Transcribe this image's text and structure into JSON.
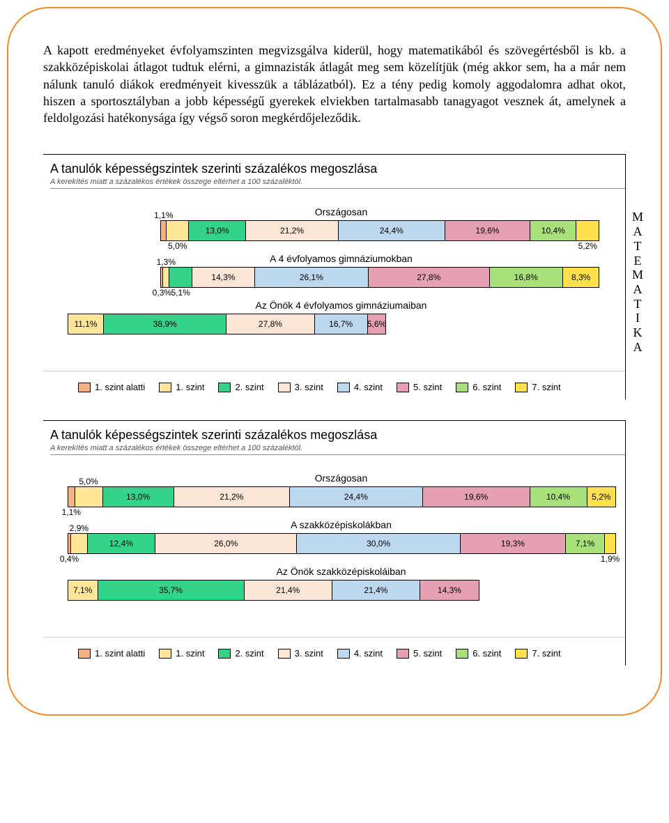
{
  "intro_paragraph": "A kapott eredményeket évfolyamszinten megvizsgálva kiderül, hogy matematikából és szövegértésből is kb. a szakközépiskolai átlagot tudtuk elérni, a gimnazisták átlagát meg sem közelítjük (még akkor sem, ha a már nem nálunk tanuló diákok eredményeit kivesszük a táblázatból). Ez a tény pedig komoly aggodalomra adhat okot, hiszen a sportosztályban a jobb képességű gyerekek elviekben tartalmasabb tanagyagot vesznek át, amelynek a feldolgozási hatékonysága így végső soron megkérdőjeleződik.",
  "side_vertical_text": "MATEMATIKA",
  "colors": {
    "level_below1": "#f4b183",
    "level1": "#ffe699",
    "level2": "#33d48a",
    "level3": "#fbe5d6",
    "level4": "#bdd7ee",
    "level5": "#e6a0b4",
    "level6": "#a9e07a",
    "level7": "#ffe04d"
  },
  "legend": [
    {
      "label": "1. szint alatti"
    },
    {
      "label": "1. szint"
    },
    {
      "label": "2. szint"
    },
    {
      "label": "3. szint"
    },
    {
      "label": "4. szint"
    },
    {
      "label": "5. szint"
    },
    {
      "label": "6. szint"
    },
    {
      "label": "7. szint"
    }
  ],
  "chart1": {
    "title": "A tanulók képességszintek szerinti százalékos megoszlása",
    "subtitle": "A kerekítés miatt a százalékos értékek összege eltérhet a 100 százaléktól.",
    "left_offset_pct": 17,
    "groups": [
      {
        "title": "Országosan",
        "bar_width_pct": 80,
        "segments": [
          {
            "level": "level_below1",
            "value": 1.1,
            "label": "1,1%",
            "pos": "above"
          },
          {
            "level": "level1",
            "value": 5.0,
            "label": "5,0%",
            "pos": "below"
          },
          {
            "level": "level2",
            "value": 13.0,
            "label": "13,0%",
            "pos": "in"
          },
          {
            "level": "level3",
            "value": 21.2,
            "label": "21,2%",
            "pos": "in"
          },
          {
            "level": "level4",
            "value": 24.4,
            "label": "24,4%",
            "pos": "in"
          },
          {
            "level": "level5",
            "value": 19.6,
            "label": "19,6%",
            "pos": "in"
          },
          {
            "level": "level6",
            "value": 10.4,
            "label": "10,4%",
            "pos": "in"
          },
          {
            "level": "level7",
            "value": 5.2,
            "label": "5,2%",
            "pos": "below"
          }
        ]
      },
      {
        "title": "A 4 évfolyamos gimnáziumokban",
        "bar_width_pct": 80,
        "segments": [
          {
            "level": "level_below1",
            "value": 0.3,
            "label": "0,3%",
            "pos": "below"
          },
          {
            "level": "level1",
            "value": 1.3,
            "label": "1,3%",
            "pos": "above"
          },
          {
            "level": "level2",
            "value": 5.1,
            "label": "5,1%",
            "pos": "below"
          },
          {
            "level": "level3",
            "value": 14.3,
            "label": "14,3%",
            "pos": "in"
          },
          {
            "level": "level4",
            "value": 26.1,
            "label": "26,1%",
            "pos": "in"
          },
          {
            "level": "level5",
            "value": 27.8,
            "label": "27,8%",
            "pos": "in"
          },
          {
            "level": "level6",
            "value": 16.8,
            "label": "16,8%",
            "pos": "in"
          },
          {
            "level": "level7",
            "value": 8.3,
            "label": "8,3%",
            "pos": "in"
          }
        ]
      },
      {
        "title": "Az Önök 4 évfolyamos gimnáziumaiban",
        "bar_width_pct": 58,
        "left_shift": true,
        "segments": [
          {
            "level": "level1",
            "value": 11.1,
            "label": "11,1%",
            "pos": "in"
          },
          {
            "level": "level2",
            "value": 38.9,
            "label": "38,9%",
            "pos": "in"
          },
          {
            "level": "level3",
            "value": 27.8,
            "label": "27,8%",
            "pos": "in"
          },
          {
            "level": "level4",
            "value": 16.7,
            "label": "16,7%",
            "pos": "in"
          },
          {
            "level": "level5",
            "value": 5.6,
            "label": "5,6%",
            "pos": "in"
          }
        ]
      }
    ]
  },
  "chart2": {
    "title": "A tanulók képességszintek szerinti százalékos megoszlása",
    "subtitle": "A kerekítés miatt a százalékos értékek összege eltérhet a 100 százaléktól.",
    "groups": [
      {
        "title": "Országosan",
        "bar_width_pct": 100,
        "segments": [
          {
            "level": "level_below1",
            "value": 1.1,
            "label": "1,1%",
            "pos": "below"
          },
          {
            "level": "level1",
            "value": 5.0,
            "label": "5,0%",
            "pos": "above"
          },
          {
            "level": "level2",
            "value": 13.0,
            "label": "13,0%",
            "pos": "in"
          },
          {
            "level": "level3",
            "value": 21.2,
            "label": "21,2%",
            "pos": "in"
          },
          {
            "level": "level4",
            "value": 24.4,
            "label": "24,4%",
            "pos": "in"
          },
          {
            "level": "level5",
            "value": 19.6,
            "label": "19,6%",
            "pos": "in"
          },
          {
            "level": "level6",
            "value": 10.4,
            "label": "10,4%",
            "pos": "in"
          },
          {
            "level": "level7",
            "value": 5.2,
            "label": "5,2%",
            "pos": "in"
          }
        ]
      },
      {
        "title": "A szakközépiskolákban",
        "bar_width_pct": 100,
        "segments": [
          {
            "level": "level_below1",
            "value": 0.4,
            "label": "0,4%",
            "pos": "below"
          },
          {
            "level": "level1",
            "value": 2.9,
            "label": "2,9%",
            "pos": "above"
          },
          {
            "level": "level2",
            "value": 12.4,
            "label": "12,4%",
            "pos": "in"
          },
          {
            "level": "level3",
            "value": 26.0,
            "label": "26,0%",
            "pos": "in"
          },
          {
            "level": "level4",
            "value": 30.0,
            "label": "30,0%",
            "pos": "in"
          },
          {
            "level": "level5",
            "value": 19.3,
            "label": "19,3%",
            "pos": "in"
          },
          {
            "level": "level6",
            "value": 7.1,
            "label": "7,1%",
            "pos": "in"
          },
          {
            "level": "level7",
            "value": 1.9,
            "label": "1,9%",
            "pos": "below"
          }
        ]
      },
      {
        "title": "Az Önök szakközépiskoláiban",
        "bar_width_pct": 75,
        "left_shift": true,
        "segments": [
          {
            "level": "level1",
            "value": 7.1,
            "label": "7,1%",
            "pos": "in"
          },
          {
            "level": "level2",
            "value": 35.7,
            "label": "35,7%",
            "pos": "in"
          },
          {
            "level": "level3",
            "value": 21.4,
            "label": "21,4%",
            "pos": "in"
          },
          {
            "level": "level4",
            "value": 21.4,
            "label": "21,4%",
            "pos": "in"
          },
          {
            "level": "level5",
            "value": 14.3,
            "label": "14,3%",
            "pos": "in"
          }
        ]
      }
    ]
  }
}
